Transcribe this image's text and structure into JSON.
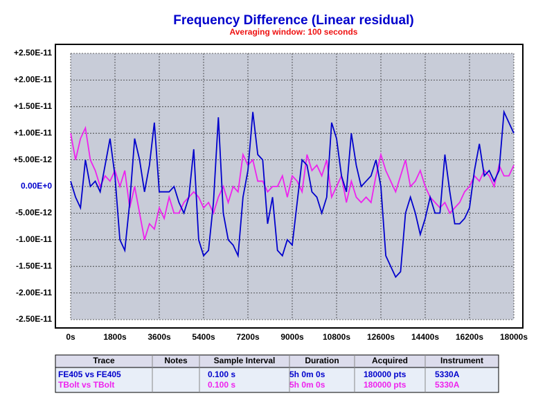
{
  "chart_data": {
    "type": "line",
    "title": "Frequency Difference (Linear residual)",
    "subtitle": "Averaging window: 100 seconds",
    "title_color": "#0000cc",
    "subtitle_color": "#ee1111",
    "plot_background": "#c8ccd8",
    "grid": true,
    "zero_label_color": "#0000cc",
    "x": [
      0,
      200,
      400,
      600,
      800,
      1000,
      1200,
      1400,
      1600,
      1800,
      2000,
      2200,
      2400,
      2600,
      2800,
      3000,
      3200,
      3400,
      3600,
      3800,
      4000,
      4200,
      4400,
      4600,
      4800,
      5000,
      5200,
      5400,
      5600,
      5800,
      6000,
      6200,
      6400,
      6600,
      6800,
      7000,
      7200,
      7400,
      7600,
      7800,
      8000,
      8200,
      8400,
      8600,
      8800,
      9000,
      9200,
      9400,
      9600,
      9800,
      10000,
      10200,
      10400,
      10600,
      10800,
      11000,
      11200,
      11400,
      11600,
      11800,
      12000,
      12200,
      12400,
      12600,
      12800,
      13000,
      13200,
      13400,
      13600,
      13800,
      14000,
      14200,
      14400,
      14600,
      14800,
      15000,
      15200,
      15400,
      15600,
      15800,
      16000,
      16200,
      16400,
      16600,
      16800,
      17000,
      17200,
      17400,
      17600,
      17800,
      18000
    ],
    "series": [
      {
        "name": "FE405 vs FE405",
        "color": "#0000cc",
        "values": [
          1e-12,
          -2e-12,
          -4e-12,
          5e-12,
          0,
          1e-12,
          -1e-12,
          4e-12,
          9e-12,
          2e-12,
          -1e-11,
          -1.2e-11,
          -3e-12,
          9e-12,
          5e-12,
          -1e-12,
          4e-12,
          1.2e-11,
          -1e-12,
          -1e-12,
          -1e-12,
          0,
          -3e-12,
          -5e-12,
          -2e-12,
          7e-12,
          -1e-11,
          -1.3e-11,
          -1.2e-11,
          -3e-12,
          1.3e-11,
          -5e-12,
          -1e-11,
          -1.1e-11,
          -1.3e-11,
          -2e-12,
          3e-12,
          1.4e-11,
          6e-12,
          5e-12,
          -7e-12,
          -2e-12,
          -1.2e-11,
          -1.3e-11,
          -1e-11,
          -1.1e-11,
          -3e-12,
          5e-12,
          4e-12,
          -1e-12,
          -2e-12,
          -5e-12,
          -2e-12,
          1.2e-11,
          9e-12,
          2e-12,
          -1e-12,
          1e-11,
          4e-12,
          0,
          1e-12,
          2e-12,
          5e-12,
          0,
          -1.3e-11,
          -1.5e-11,
          -1.7e-11,
          -1.6e-11,
          -5e-12,
          -2e-12,
          -5e-12,
          -9e-12,
          -6e-12,
          -2e-12,
          -5e-12,
          -5e-12,
          6e-12,
          -1e-12,
          -7e-12,
          -7e-12,
          -6e-12,
          -4e-12,
          3e-12,
          8e-12,
          2e-12,
          3e-12,
          1e-12,
          3e-12,
          1.4e-11,
          1.2e-11,
          1e-11
        ]
      },
      {
        "name": "TBolt vs TBolt",
        "color": "#ee22ee",
        "values": [
          1e-11,
          5e-12,
          9e-12,
          1.1e-11,
          5e-12,
          3e-12,
          0,
          2e-12,
          1e-12,
          3e-12,
          0,
          3e-12,
          -4e-12,
          0,
          -5e-12,
          -1e-11,
          -7e-12,
          -8e-12,
          -4e-12,
          -6e-12,
          -2e-12,
          -5e-12,
          -5e-12,
          -3e-12,
          -2e-12,
          -1e-12,
          -2e-12,
          -4e-12,
          -3e-12,
          -5e-12,
          -2e-12,
          0,
          -3e-12,
          0,
          -1e-12,
          6e-12,
          4e-12,
          5e-12,
          1e-12,
          1e-12,
          -1e-12,
          0,
          0,
          2e-12,
          -2e-12,
          2e-12,
          1e-12,
          -1e-12,
          6e-12,
          3e-12,
          4e-12,
          2e-12,
          5e-12,
          -2e-12,
          0,
          2e-12,
          -3e-12,
          1e-12,
          -2e-12,
          -3e-12,
          -2e-12,
          -3e-12,
          2e-12,
          6e-12,
          3e-12,
          1e-12,
          -1e-12,
          2e-12,
          5e-12,
          0,
          1e-12,
          3e-12,
          0,
          -2e-12,
          -3e-12,
          -4e-12,
          -3e-12,
          -5e-12,
          -4e-12,
          -3e-12,
          -1e-12,
          0,
          2e-12,
          1e-12,
          3e-12,
          2e-12,
          0,
          4e-12,
          2e-12,
          2e-12,
          4e-12
        ]
      }
    ],
    "xlim": [
      0,
      18000
    ],
    "xticks": [
      {
        "value": 0,
        "label": "0s"
      },
      {
        "value": 1800,
        "label": "1800s"
      },
      {
        "value": 3600,
        "label": "3600s"
      },
      {
        "value": 5400,
        "label": "5400s"
      },
      {
        "value": 7200,
        "label": "7200s"
      },
      {
        "value": 9000,
        "label": "9000s"
      },
      {
        "value": 10800,
        "label": "10800s"
      },
      {
        "value": 12600,
        "label": "12600s"
      },
      {
        "value": 14400,
        "label": "14400s"
      },
      {
        "value": 16200,
        "label": "16200s"
      },
      {
        "value": 18000,
        "label": "18000s"
      }
    ],
    "ylim": [
      -2.5e-11,
      2.5e-11
    ],
    "yticks": [
      {
        "value": 2.5e-11,
        "label": "+2.50E-11"
      },
      {
        "value": 2e-11,
        "label": "+2.00E-11"
      },
      {
        "value": 1.5e-11,
        "label": "+1.50E-11"
      },
      {
        "value": 1e-11,
        "label": "+1.00E-11"
      },
      {
        "value": 5e-12,
        "label": "+5.00E-12"
      },
      {
        "value": 0,
        "label": "0.00E+0"
      },
      {
        "value": -5e-12,
        "label": "-5.00E-12"
      },
      {
        "value": -1e-11,
        "label": "-1.00E-11"
      },
      {
        "value": -1.5e-11,
        "label": "-1.50E-11"
      },
      {
        "value": -2e-11,
        "label": "-2.00E-11"
      },
      {
        "value": -2.5e-11,
        "label": "-2.50E-11"
      }
    ]
  },
  "table": {
    "headers": [
      "Trace",
      "Notes",
      "Sample Interval",
      "Duration",
      "Acquired",
      "Instrument"
    ],
    "rows": [
      {
        "trace": "FE405 vs FE405",
        "sample_interval": "0.100 s",
        "duration": "5h 0m 0s",
        "acquired": "180000 pts",
        "instrument": "5330A",
        "color": "#0000cc"
      },
      {
        "trace": "TBolt vs TBolt",
        "sample_interval": "0.100 s",
        "duration": "5h 0m 0s",
        "acquired": "180000 pts",
        "instrument": "5330A",
        "color": "#ee22ee"
      }
    ]
  }
}
